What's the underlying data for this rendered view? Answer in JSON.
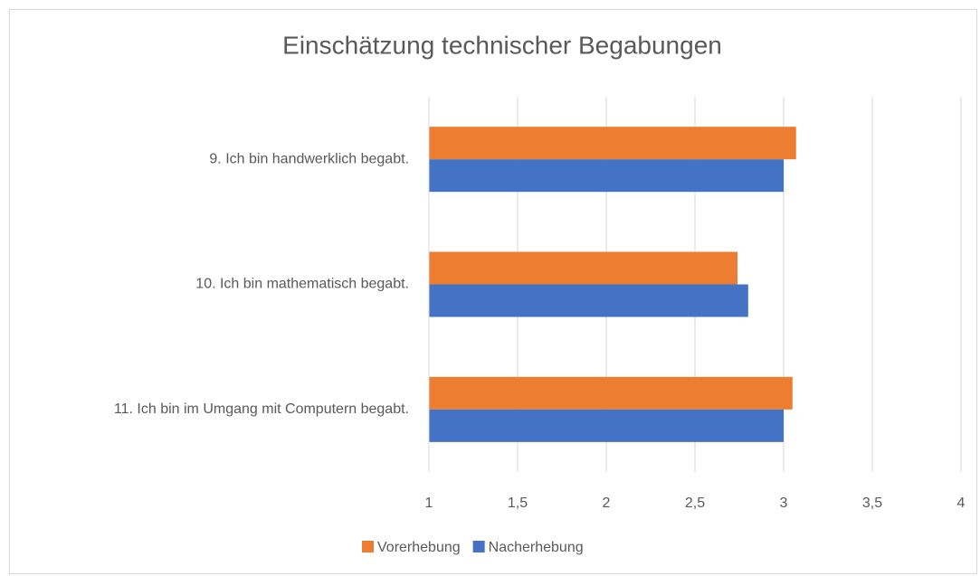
{
  "chart_data": {
    "type": "hbar",
    "title": "Einschätzung technischer Begabungen",
    "categories": [
      "9. Ich bin handwerklich begabt.",
      "10. Ich bin mathematisch begabt.",
      "11. Ich bin im Umgang mit Computern begabt."
    ],
    "series": [
      {
        "name": "Vorerhebung",
        "color": "#ed7d31",
        "values": [
          3.07,
          2.74,
          3.05
        ]
      },
      {
        "name": "Nacherhebung",
        "color": "#4472c4",
        "values": [
          3.0,
          2.8,
          3.0
        ]
      }
    ],
    "xlim": [
      1,
      4
    ],
    "xticks": [
      1,
      {
        "value": 1.5,
        "label": "1,5"
      },
      2,
      {
        "value": 2.5,
        "label": "2,5"
      },
      3,
      {
        "value": 3.5,
        "label": "3,5"
      },
      4
    ],
    "grid": true,
    "legend": "bottom"
  }
}
